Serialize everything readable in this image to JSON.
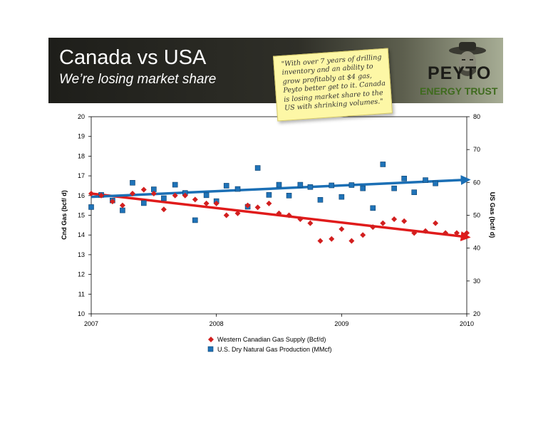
{
  "slide": {
    "title": "Canada vs USA",
    "subtitle": "We’re losing market share",
    "note": "\"With over 7 years of drilling inventory and an ability to grow profitably at $4 gas, Peyto better get to it. Canada is losing market share to the US with shrinking volumes.\"",
    "logo_name": "PEYTO",
    "logo_sub": "ENERGY TRUST"
  },
  "colors": {
    "canada": "#d21f1f",
    "usa": "#1f73b8",
    "canada_trend": "#e01b1b",
    "usa_trend": "#1b6fb5"
  },
  "chart_data": {
    "type": "scatter",
    "title": "",
    "xlabel": "",
    "ylabel_left": "Cnd Gas (bcf/ d)",
    "ylabel_right": "US Gas (bcf/ d)",
    "xlim": [
      2007,
      2010
    ],
    "ylim_left": [
      10,
      20
    ],
    "ylim_right": [
      20,
      80
    ],
    "x_ticks": [
      "2007",
      "2008",
      "2009",
      "2010"
    ],
    "y_left_ticks": [
      "10",
      "11",
      "12",
      "13",
      "14",
      "15",
      "16",
      "17",
      "18",
      "19",
      "20"
    ],
    "y_right_ticks": [
      "20",
      "30",
      "40",
      "50",
      "60",
      "70",
      "80"
    ],
    "grid": false,
    "legend_position": "bottom",
    "series": [
      {
        "name": "Western Canadian Gas Supply (Bcf/d)",
        "axis": "left",
        "marker": "diamond",
        "x": [
          2007.0,
          2007.08,
          2007.17,
          2007.25,
          2007.33,
          2007.42,
          2007.5,
          2007.58,
          2007.67,
          2007.75,
          2007.83,
          2007.92,
          2008.0,
          2008.08,
          2008.17,
          2008.25,
          2008.33,
          2008.42,
          2008.5,
          2008.58,
          2008.67,
          2008.75,
          2008.83,
          2008.92,
          2009.0,
          2009.08,
          2009.17,
          2009.25,
          2009.33,
          2009.42,
          2009.5,
          2009.58,
          2009.67,
          2009.75,
          2009.83,
          2009.92,
          2010.0
        ],
        "values": [
          16.1,
          16.0,
          15.7,
          15.5,
          16.1,
          16.3,
          16.1,
          15.3,
          16.0,
          16.0,
          15.8,
          15.6,
          15.6,
          15.0,
          15.1,
          15.5,
          15.4,
          15.6,
          15.1,
          15.0,
          14.8,
          14.6,
          13.7,
          13.8,
          14.3,
          13.7,
          14.0,
          14.4,
          14.6,
          14.8,
          14.7,
          14.1,
          14.2,
          14.6,
          14.1,
          14.1,
          14.1
        ]
      },
      {
        "name": "U.S. Dry Natural Gas Production (MMcf)",
        "axis": "right",
        "marker": "square",
        "x": [
          2007.0,
          2007.08,
          2007.17,
          2007.25,
          2007.33,
          2007.42,
          2007.5,
          2007.58,
          2007.67,
          2007.75,
          2007.83,
          2007.92,
          2008.0,
          2008.08,
          2008.17,
          2008.25,
          2008.33,
          2008.42,
          2008.5,
          2008.58,
          2008.67,
          2008.75,
          2008.83,
          2008.92,
          2009.0,
          2009.08,
          2009.17,
          2009.25,
          2009.33,
          2009.42,
          2009.5,
          2009.58,
          2009.67,
          2009.75
        ],
        "values": [
          52.5,
          56.2,
          54.5,
          51.5,
          59.9,
          53.7,
          57.9,
          55.2,
          59.3,
          56.8,
          48.5,
          56.1,
          54.3,
          59.0,
          58.0,
          52.6,
          64.4,
          56.2,
          59.3,
          56.0,
          59.3,
          58.6,
          54.7,
          59.1,
          55.6,
          59.2,
          58.2,
          52.2,
          65.5,
          58.2,
          61.2,
          57.0,
          60.7,
          59.7
        ]
      }
    ],
    "trendlines": [
      {
        "series": "Western Canadian Gas Supply (Bcf/d)",
        "axis": "left",
        "x": [
          2007.0,
          2010.0
        ],
        "y": [
          16.1,
          13.9
        ]
      },
      {
        "series": "U.S. Dry Natural Gas Production (MMcf)",
        "axis": "right",
        "x": [
          2007.0,
          2010.0
        ],
        "y": [
          55.6,
          60.8
        ]
      }
    ]
  }
}
